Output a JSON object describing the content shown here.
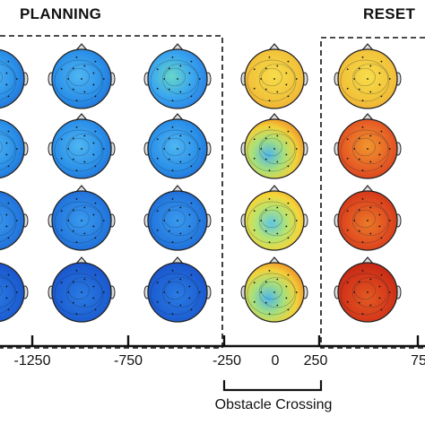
{
  "headers": {
    "planning": "PLANNING",
    "reset": "RESET"
  },
  "axis": {
    "ticks": [
      "-1250",
      "-750",
      "-250",
      "0",
      "250",
      "75"
    ]
  },
  "caption": "Obstacle Crossing",
  "colors": {
    "deep_blue": "#1f55d6",
    "blue": "#2a86e6",
    "light_blue": "#3fa9f0",
    "cyan_green": "#67d9b0",
    "yellow": "#f4d23c",
    "orange": "#f08a2a",
    "red": "#e0391c"
  }
}
